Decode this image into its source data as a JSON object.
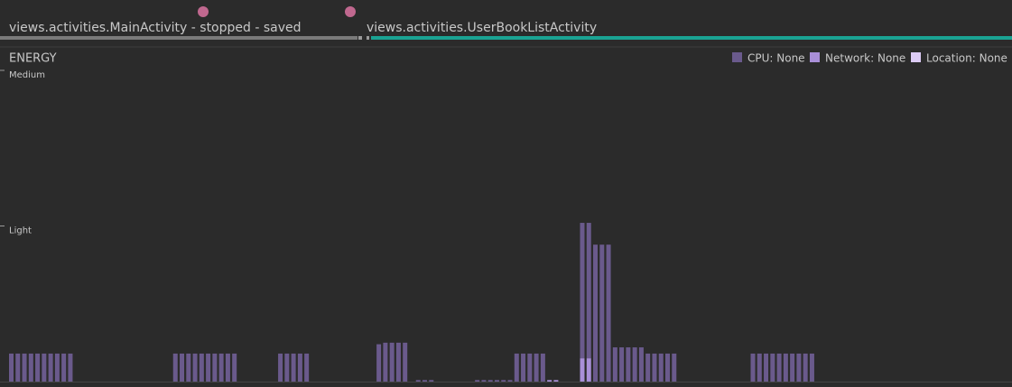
{
  "timeline": {
    "activities": [
      "views.activities.MainActivity - stopped - saved",
      "views.activities.UserBookListActivity"
    ]
  },
  "chart_data": {
    "type": "bar",
    "stacked": true,
    "title": "ENERGY",
    "ylim": [
      0,
      2
    ],
    "yticks": [
      {
        "value": 2,
        "label": "Medium"
      },
      {
        "value": 1,
        "label": "Light"
      }
    ],
    "legend": "top-right",
    "series": [
      {
        "name": "CPU: None",
        "color": "#6a5a8c",
        "values": [
          0.18,
          0.18,
          0.18,
          0.18,
          0.18,
          0.18,
          0.18,
          0.18,
          0.18,
          0.18,
          null,
          null,
          null,
          null,
          null,
          null,
          null,
          null,
          null,
          null,
          null,
          null,
          null,
          null,
          null,
          0.18,
          0.18,
          0.18,
          0.18,
          0.18,
          0.18,
          0.18,
          0.18,
          0.18,
          0.18,
          null,
          null,
          null,
          null,
          null,
          null,
          0.18,
          0.18,
          0.18,
          0.18,
          0.18,
          null,
          null,
          null,
          null,
          null,
          null,
          null,
          null,
          null,
          null,
          0.24,
          0.25,
          0.25,
          0.25,
          0.25,
          null,
          0.01,
          0.01,
          0.01,
          null,
          null,
          null,
          null,
          null,
          null,
          0.01,
          0.01,
          0.01,
          0.01,
          0.01,
          0.01,
          0.18,
          0.18,
          0.18,
          0.18,
          0.18,
          null,
          null,
          null,
          null,
          null,
          0.87,
          0.87,
          0.88,
          0.88,
          0.88,
          0.22,
          0.22,
          0.22,
          0.22,
          0.22,
          0.18,
          0.18,
          0.18,
          0.18,
          0.18,
          null,
          null,
          null,
          null,
          null,
          null,
          null,
          null,
          null,
          null,
          null,
          0.18,
          0.18,
          0.18,
          0.18,
          0.18,
          0.18,
          0.18,
          0.18,
          0.18,
          0.18,
          null,
          null,
          null,
          null,
          null,
          null,
          null,
          null,
          null,
          null,
          null,
          null,
          null,
          null,
          null,
          null,
          null,
          null,
          null,
          null,
          null,
          null,
          null,
          null,
          null,
          null,
          null,
          null,
          null
        ]
      },
      {
        "name": "Network: None",
        "color": "#a98fd8",
        "values": [
          null,
          null,
          null,
          null,
          null,
          null,
          null,
          null,
          null,
          null,
          null,
          null,
          null,
          null,
          null,
          null,
          null,
          null,
          null,
          null,
          null,
          null,
          null,
          null,
          null,
          null,
          null,
          null,
          null,
          null,
          null,
          null,
          null,
          null,
          null,
          null,
          null,
          null,
          null,
          null,
          null,
          null,
          null,
          null,
          null,
          null,
          null,
          null,
          null,
          null,
          null,
          null,
          null,
          null,
          null,
          null,
          null,
          null,
          null,
          null,
          null,
          null,
          null,
          null,
          null,
          null,
          null,
          null,
          null,
          null,
          null,
          null,
          null,
          null,
          null,
          null,
          null,
          null,
          null,
          null,
          null,
          null,
          0.01,
          0.01,
          null,
          null,
          null,
          0.15,
          0.15,
          null,
          null,
          null,
          null,
          null,
          null,
          null,
          null,
          null,
          null,
          null,
          null,
          null,
          null,
          null,
          null,
          null,
          null,
          null,
          null,
          null,
          null,
          null,
          null,
          null,
          null,
          null,
          null,
          null,
          null,
          null,
          null,
          null,
          null,
          null,
          null,
          null,
          null,
          null,
          null,
          null,
          null,
          null,
          null,
          null,
          null,
          null,
          null,
          null,
          null,
          null,
          null,
          null,
          null,
          null,
          null,
          null,
          null,
          null,
          null
        ]
      },
      {
        "name": "Location: None",
        "color": "#dccbf5",
        "values": [
          null,
          null,
          null,
          null,
          null,
          null,
          null,
          null,
          null,
          null,
          null,
          null,
          null,
          null,
          null,
          null,
          null,
          null,
          null,
          null,
          null,
          null,
          null,
          null,
          null,
          null,
          null,
          null,
          null,
          null,
          null,
          null,
          null,
          null,
          null,
          null,
          null,
          null,
          null,
          null,
          null,
          null,
          null,
          null,
          null,
          null,
          null,
          null,
          null,
          null,
          null,
          null,
          null,
          null,
          null,
          null,
          null,
          null,
          null,
          null,
          null,
          null,
          null,
          null,
          null,
          null,
          null,
          null,
          null,
          null,
          null,
          null,
          null,
          null,
          null,
          null,
          null,
          null,
          null,
          null,
          null,
          null,
          null,
          null,
          null,
          null,
          null,
          null,
          null,
          null,
          null,
          null,
          null,
          null,
          null,
          null,
          null,
          null,
          null,
          null,
          null,
          null,
          null,
          null,
          null,
          null,
          null,
          null,
          null,
          null,
          null,
          null,
          null,
          null,
          null,
          null,
          null,
          null,
          null,
          null,
          null,
          null,
          null,
          null,
          null,
          null,
          null,
          null,
          null,
          null,
          null,
          null,
          null,
          null,
          null,
          null,
          null,
          null,
          null,
          null,
          null,
          null,
          null,
          null,
          null,
          null,
          null,
          null,
          null,
          null,
          null,
          null
        ]
      }
    ]
  }
}
